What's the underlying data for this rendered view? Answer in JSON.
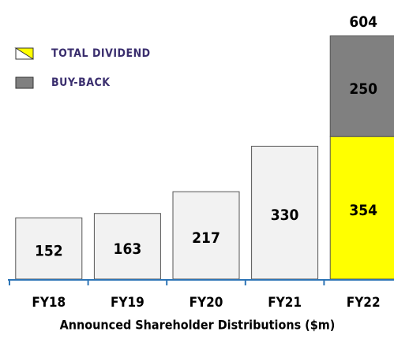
{
  "chart_data": {
    "type": "stacked_bar",
    "title": "Announced Shareholder Distributions ($m)",
    "categories": [
      "FY18",
      "FY19",
      "FY20",
      "FY21",
      "FY22"
    ],
    "series": [
      {
        "name": "TOTAL DIVIDEND",
        "color": "#ffff00",
        "colors": [
          "#f2f2f2",
          "#f2f2f2",
          "#f2f2f2",
          "#f2f2f2",
          "#ffff00"
        ],
        "values": [
          152,
          163,
          217,
          330,
          354
        ]
      },
      {
        "name": "BUY-BACK",
        "color": "#808080",
        "values": [
          null,
          null,
          null,
          null,
          250
        ]
      }
    ],
    "totals": [
      null,
      null,
      null,
      null,
      604
    ],
    "ylim": [
      0,
      650
    ],
    "legend": "top-left"
  }
}
